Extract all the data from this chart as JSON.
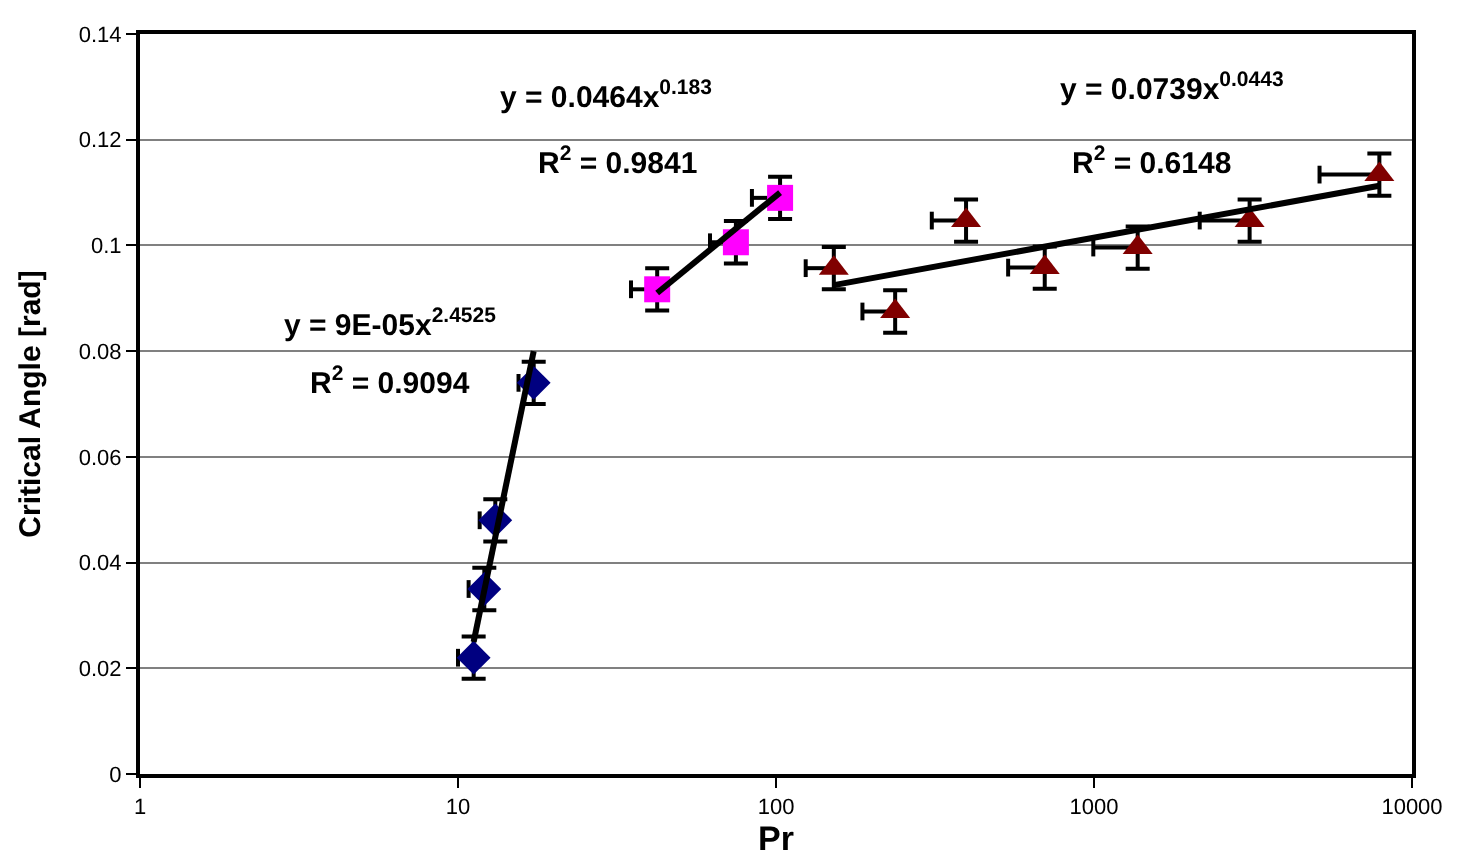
{
  "chart_data": {
    "type": "scatter",
    "xlabel": "Pr",
    "ylabel": "Critical Angle [rad]",
    "log": "x",
    "xlim": [
      1,
      10000
    ],
    "xticks": [
      1,
      10,
      100,
      1000,
      10000
    ],
    "ylim": [
      0,
      0.14
    ],
    "yticks": [
      0,
      0.02,
      0.04,
      0.06,
      0.08,
      {
        "value": 0.1,
        "label": "0.1"
      },
      0.12,
      0.14
    ],
    "grid": "y",
    "series": [
      {
        "color": "#000080",
        "marker": "diamond",
        "x": [
          11.2,
          12.1,
          13.1,
          17.3
        ],
        "values": [
          0.022,
          0.035,
          0.048,
          0.074
        ],
        "errors": [
          0.004,
          0.004,
          0.004,
          0.004
        ],
        "xerrors": [
          [
            10,
            11.2
          ],
          [
            10.8,
            12.1
          ],
          [
            11.7,
            13.1
          ],
          [
            15.5,
            17.3
          ]
        ]
      },
      {
        "color": "#ff00ff",
        "marker": "square",
        "x": [
          42.3,
          74.8,
          103
        ],
        "values": [
          0.0917,
          0.1006,
          0.109
        ],
        "errors": [
          0.004,
          0.004,
          0.004
        ],
        "xerrors": [
          [
            35,
            42.3
          ],
          [
            62,
            74.8
          ],
          [
            84,
            103
          ]
        ]
      },
      {
        "color": "#800000",
        "marker": "triangle",
        "x": [
          152,
          237,
          396,
          700,
          1372,
          3086,
          7895
        ],
        "values": [
          0.0957,
          0.0875,
          0.1047,
          0.0958,
          0.0996,
          0.1047,
          0.1134
        ],
        "errors": [
          0.004,
          0.004,
          0.004,
          0.004,
          0.004,
          0.004,
          0.004
        ],
        "xerrors": [
          [
            124,
            152
          ],
          [
            187,
            237
          ],
          [
            309,
            396
          ],
          [
            537,
            700
          ],
          [
            995,
            1372
          ],
          [
            2150,
            3086
          ],
          [
            5120,
            7895
          ]
        ]
      },
      {
        "type": "line",
        "color": "#000000",
        "x": [
          11.2,
          17.3
        ],
        "values": [
          0.025,
          0.08
        ]
      },
      {
        "type": "line",
        "color": "#000000",
        "x": [
          42.3,
          103
        ],
        "values": [
          0.091,
          0.11
        ]
      },
      {
        "type": "line",
        "color": "#000000",
        "x": [
          152,
          7895
        ],
        "values": [
          0.0925,
          0.1113
        ]
      }
    ],
    "annotations": [
      "y = 9E-05x$^{2.4525}$",
      "R$^{2}$ = 0.9094",
      "y = 0.0464x$^{0.183}$",
      "R$^{2}$ = 0.9841",
      "y = 0.0739x$^{0.0443}$",
      "R$^{2}$ = 0.6148"
    ]
  }
}
